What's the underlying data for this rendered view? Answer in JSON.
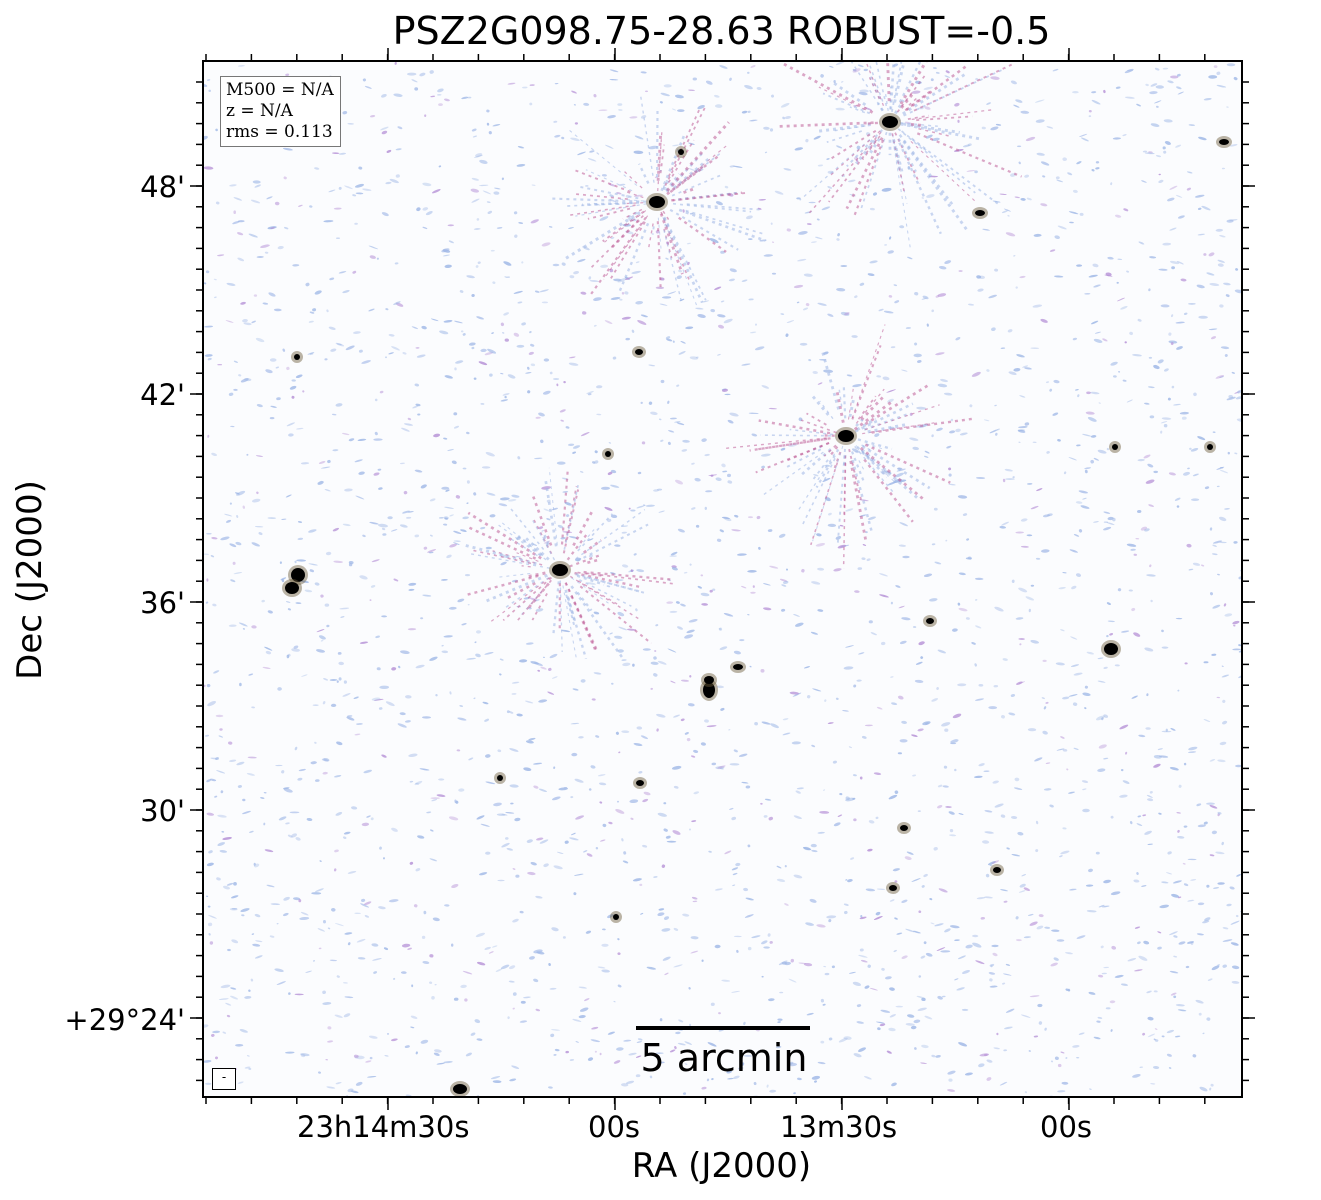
{
  "title": "PSZ2G098.75-28.63 ROBUST=-0.5",
  "info_box": {
    "mass": "M500 = N/A",
    "redshift": "z = N/A",
    "rms": "rms = 0.113"
  },
  "scale_bar": {
    "label": "5 arcmin"
  },
  "beam_marker": {
    "label": "-"
  },
  "axes": {
    "x_label": "RA (J2000)",
    "y_label": "Dec (J2000)",
    "x_ticks": [
      "23h14m30s",
      "00s",
      "13m30s",
      "00s"
    ],
    "y_ticks": [
      "48'",
      "42'",
      "36'",
      "30'",
      "+29°24'"
    ]
  },
  "colors": {
    "noise_blue": "#9fb7e6",
    "noise_purple": "#b590d6",
    "sidelobe_magenta": "#c0609a",
    "source_core": "#000000",
    "background": "#fbfcfe"
  }
}
